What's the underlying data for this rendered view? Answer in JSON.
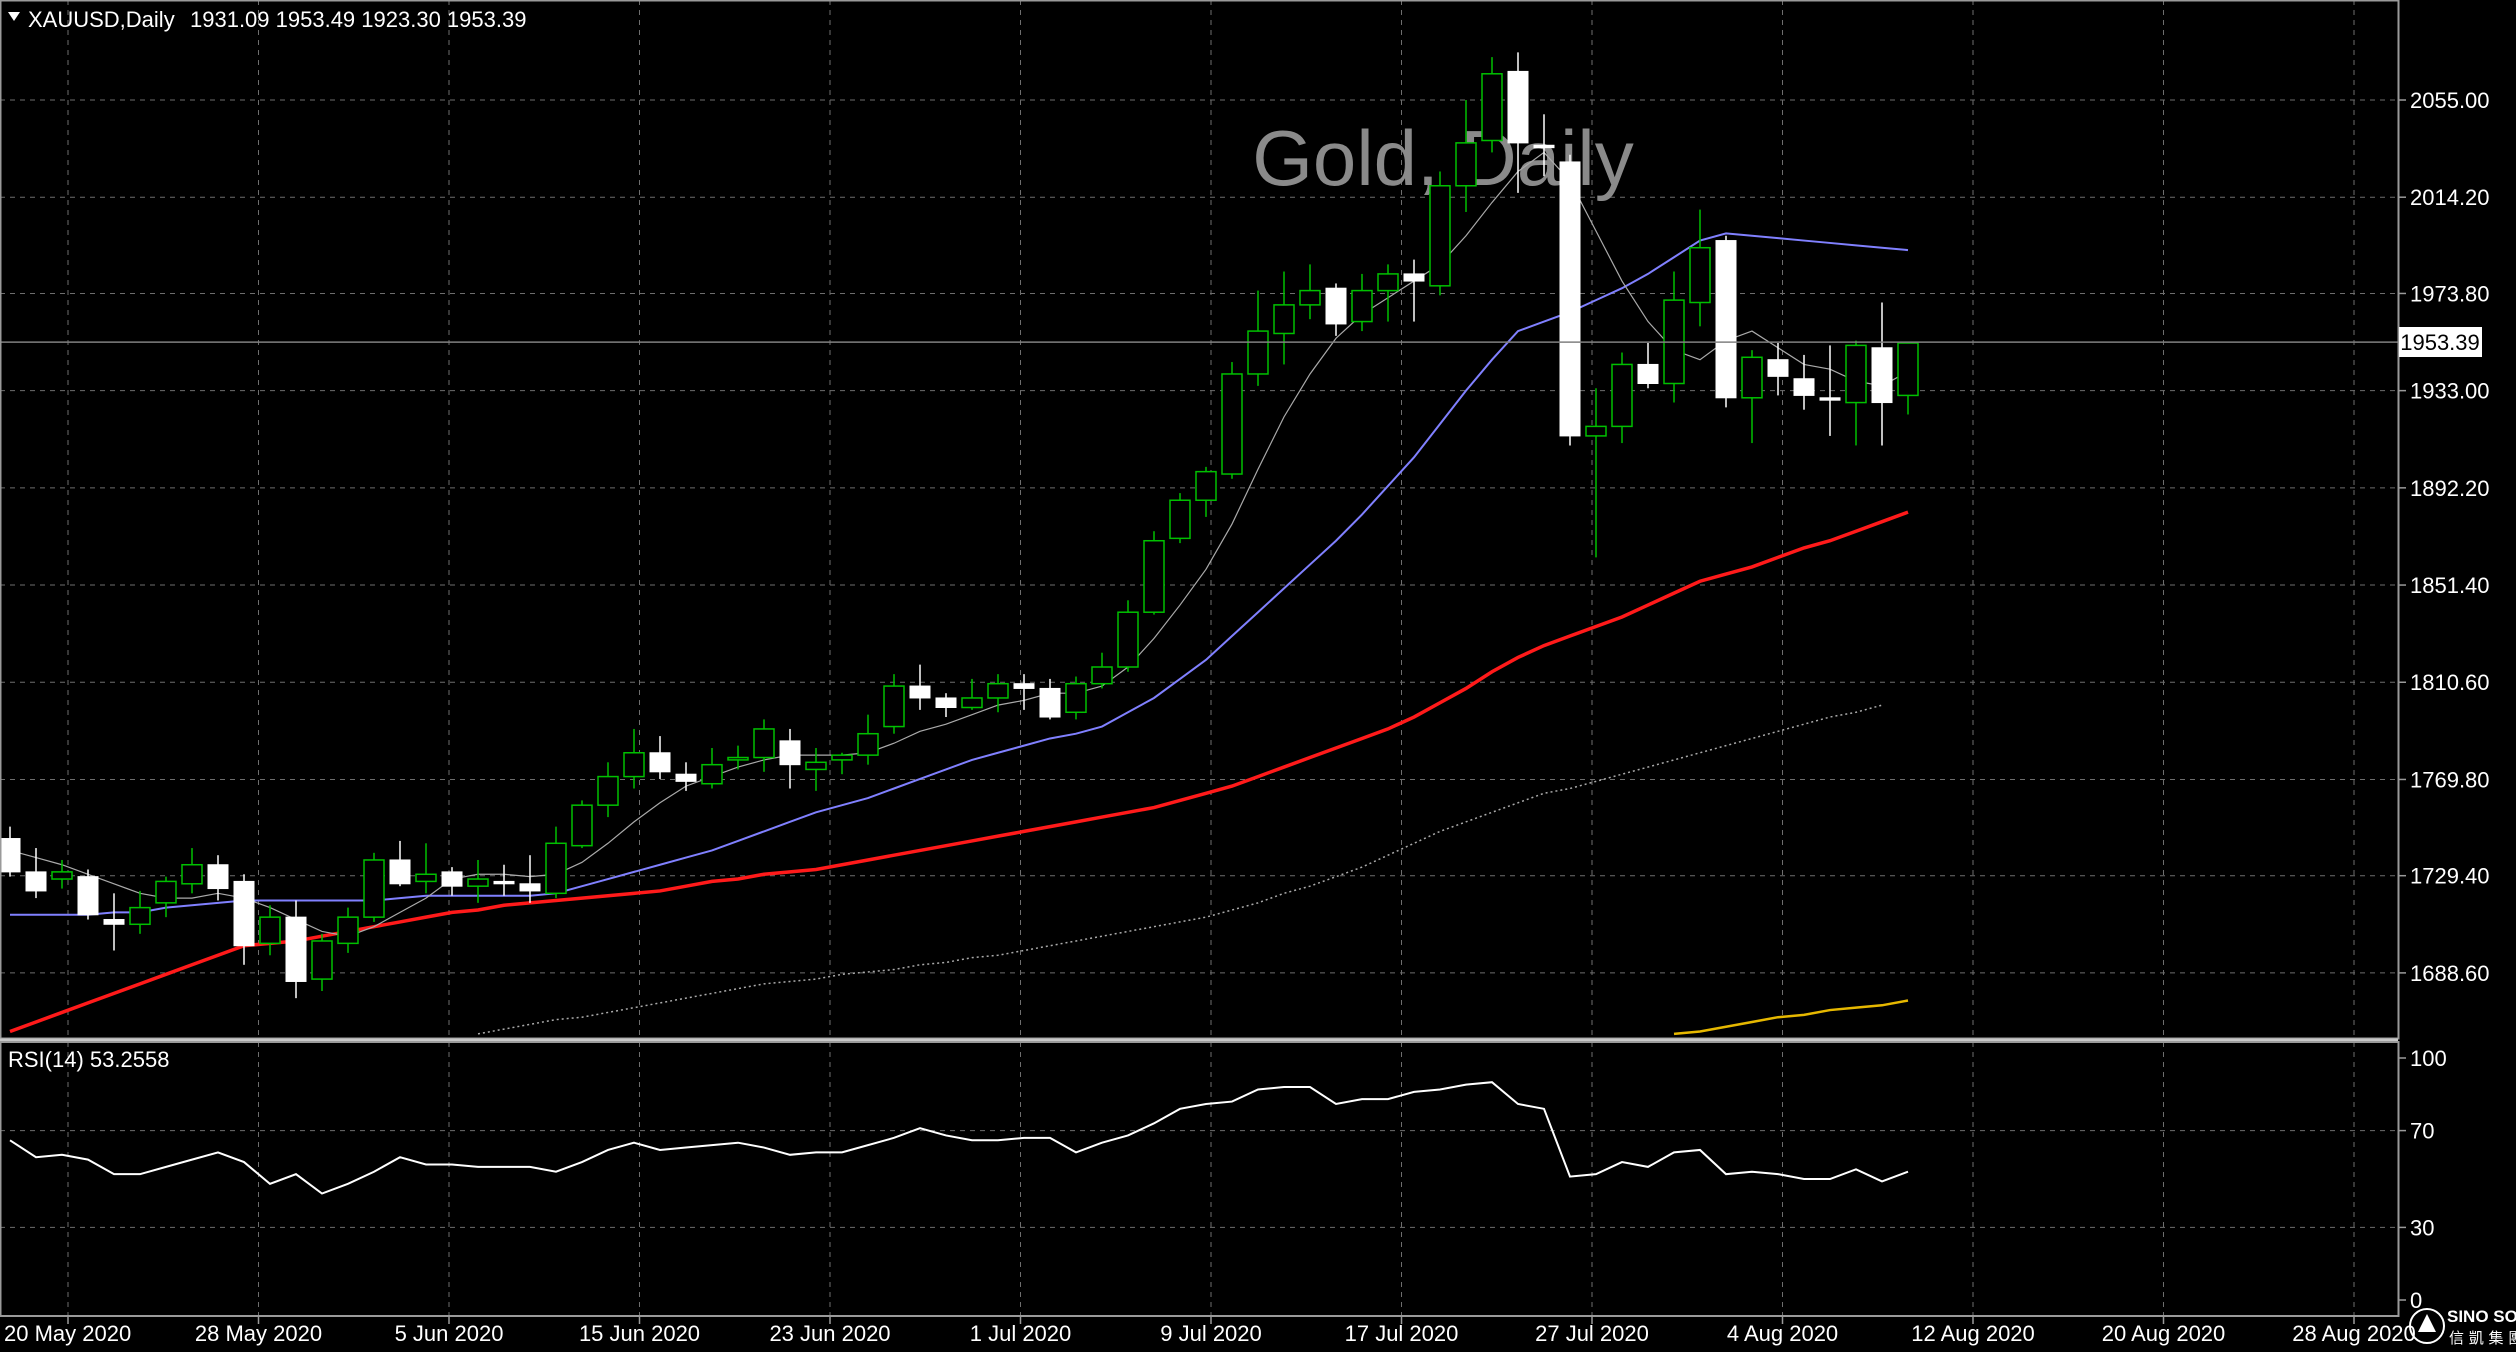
{
  "header": {
    "symbol": "XAUUSD,Daily",
    "ohlc": "1931.09 1953.49 1923.30 1953.39"
  },
  "watermark": "Gold, Daily",
  "logo": {
    "line1": "SINO SOUND",
    "line2": "信 凱 集 團"
  },
  "rsi_label": "RSI(14) 53.2558",
  "price_label": "1953.39",
  "chart_data": [
    {
      "type": "candlestick",
      "title": "Gold, Daily",
      "symbol": "XAUUSD",
      "timeframe": "Daily",
      "grid": true,
      "ylim": [
        1663,
        2080
      ],
      "y_ticks": [
        "2055.00",
        "2014.20",
        "1973.80",
        "1933.00",
        "1892.20",
        "1851.40",
        "1810.60",
        "1769.80",
        "1729.40",
        "1688.60"
      ],
      "x_ticks": [
        "20 May 2020",
        "28 May 2020",
        "5 Jun 2020",
        "15 Jun 2020",
        "23 Jun 2020",
        "1 Jul 2020",
        "9 Jul 2020",
        "17 Jul 2020",
        "27 Jul 2020",
        "4 Aug 2020",
        "12 Aug 2020",
        "20 Aug 2020",
        "28 Aug 2020"
      ],
      "last_price": 1953.39,
      "colors": {
        "up": "#00c000",
        "down": "#ffffff",
        "ma_fast": "#aaaaaa",
        "ma_blue": "#8080ff",
        "ma_red": "#ff1a1a",
        "ma_dotted": "#aaaaaa",
        "ma_yellow": "#e6b800",
        "last_line": "#808080"
      },
      "candles": [
        [
          1745,
          1750,
          1729,
          1731
        ],
        [
          1731,
          1741,
          1720,
          1723
        ],
        [
          1728,
          1736,
          1724,
          1731
        ],
        [
          1729,
          1732,
          1711,
          1713
        ],
        [
          1711,
          1722,
          1698,
          1709
        ],
        [
          1709,
          1723,
          1705,
          1716
        ],
        [
          1718,
          1729,
          1712,
          1727
        ],
        [
          1726,
          1741,
          1722,
          1734
        ],
        [
          1734,
          1738,
          1719,
          1724
        ],
        [
          1727,
          1730,
          1692,
          1700
        ],
        [
          1701,
          1717,
          1696,
          1712
        ],
        [
          1712,
          1719,
          1678,
          1685
        ],
        [
          1686,
          1705,
          1681,
          1702
        ],
        [
          1701,
          1716,
          1697,
          1712
        ],
        [
          1712,
          1739,
          1710,
          1736
        ],
        [
          1736,
          1744,
          1725,
          1726
        ],
        [
          1727,
          1743,
          1722,
          1730
        ],
        [
          1731,
          1733,
          1721,
          1725
        ],
        [
          1725,
          1736,
          1718,
          1728
        ],
        [
          1727,
          1734,
          1721,
          1726
        ],
        [
          1726,
          1738,
          1718,
          1723
        ],
        [
          1722,
          1750,
          1720,
          1743
        ],
        [
          1742,
          1761,
          1741,
          1759
        ],
        [
          1759,
          1777,
          1754,
          1771
        ],
        [
          1771,
          1791,
          1766,
          1781
        ],
        [
          1781,
          1788,
          1770,
          1773
        ],
        [
          1772,
          1777,
          1765,
          1769
        ],
        [
          1768,
          1783,
          1766,
          1776
        ],
        [
          1778,
          1784,
          1774,
          1779
        ],
        [
          1779,
          1795,
          1773,
          1791
        ],
        [
          1786,
          1791,
          1766,
          1776
        ],
        [
          1774,
          1783,
          1765,
          1777
        ],
        [
          1778,
          1781,
          1772,
          1780
        ],
        [
          1780,
          1797,
          1776,
          1789
        ],
        [
          1792,
          1814,
          1789,
          1809
        ],
        [
          1809,
          1818,
          1799,
          1804
        ],
        [
          1804,
          1806,
          1796,
          1800
        ],
        [
          1800,
          1812,
          1799,
          1804
        ],
        [
          1804,
          1814,
          1798,
          1810
        ],
        [
          1810,
          1814,
          1799,
          1808
        ],
        [
          1808,
          1812,
          1795,
          1796
        ],
        [
          1798,
          1813,
          1795,
          1810
        ],
        [
          1810,
          1823,
          1808,
          1817
        ],
        [
          1817,
          1845,
          1815,
          1840
        ],
        [
          1840,
          1874,
          1839,
          1870
        ],
        [
          1871,
          1890,
          1869,
          1887
        ],
        [
          1887,
          1901,
          1880,
          1899
        ],
        [
          1898,
          1945,
          1896,
          1940
        ],
        [
          1940,
          1975,
          1935,
          1958
        ],
        [
          1957,
          1983,
          1944,
          1969
        ],
        [
          1969,
          1986,
          1963,
          1975
        ],
        [
          1976,
          1978,
          1956,
          1961
        ],
        [
          1962,
          1982,
          1958,
          1975
        ],
        [
          1975,
          1986,
          1962,
          1982
        ],
        [
          1982,
          1988,
          1962,
          1979
        ],
        [
          1977,
          2025,
          1973,
          2019
        ],
        [
          2019,
          2055,
          2008,
          2037
        ],
        [
          2038,
          2073,
          2033,
          2066
        ],
        [
          2067,
          2075,
          2016,
          2037
        ],
        [
          2036,
          2049,
          2023,
          2035
        ],
        [
          2029,
          2032,
          1910,
          1914
        ],
        [
          1914,
          1934,
          1863,
          1918
        ],
        [
          1918,
          1949,
          1911,
          1944
        ],
        [
          1944,
          1953,
          1934,
          1936
        ],
        [
          1936,
          1983,
          1928,
          1971
        ],
        [
          1970,
          2009,
          1960,
          1993
        ],
        [
          1996,
          1998,
          1926,
          1930
        ],
        [
          1930,
          1950,
          1911,
          1947
        ],
        [
          1946,
          1953,
          1931,
          1939
        ],
        [
          1938,
          1948,
          1925,
          1931
        ],
        [
          1930,
          1952,
          1914,
          1929
        ],
        [
          1928,
          1954,
          1910,
          1952
        ],
        [
          1951,
          1970,
          1910,
          1928
        ],
        [
          1931,
          1953,
          1923,
          1953
        ]
      ],
      "ma_fast": [
        1740,
        1737,
        1734,
        1730,
        1726,
        1722,
        1720,
        1720,
        1722,
        1720,
        1716,
        1711,
        1706,
        1704,
        1708,
        1714,
        1720,
        1728,
        1730,
        1730,
        1729,
        1730,
        1735,
        1743,
        1752,
        1760,
        1767,
        1771,
        1775,
        1778,
        1780,
        1780,
        1780,
        1781,
        1785,
        1790,
        1793,
        1797,
        1801,
        1803,
        1806,
        1806,
        1809,
        1817,
        1829,
        1843,
        1858,
        1877,
        1900,
        1922,
        1940,
        1955,
        1965,
        1972,
        1979,
        1986,
        1998,
        2012,
        2025,
        2033,
        2021,
        2000,
        1979,
        1962,
        1950,
        1946,
        1954,
        1958,
        1951,
        1944,
        1942,
        1937,
        1935,
        1941
      ],
      "ma_blue": [
        1713,
        1713,
        1713,
        1713,
        1714,
        1714,
        1716,
        1717,
        1718,
        1719,
        1719,
        1719,
        1719,
        1719,
        1719,
        1720,
        1721,
        1721,
        1721,
        1721,
        1721,
        1722,
        1725,
        1728,
        1731,
        1734,
        1737,
        1740,
        1744,
        1748,
        1752,
        1756,
        1759,
        1762,
        1766,
        1770,
        1774,
        1778,
        1781,
        1784,
        1787,
        1789,
        1792,
        1798,
        1804,
        1812,
        1820,
        1830,
        1840,
        1850,
        1860,
        1870,
        1881,
        1893,
        1905,
        1919,
        1933,
        1946,
        1958,
        1962,
        1966,
        1971,
        1976,
        1982,
        1989,
        1996,
        1999,
        1998,
        1997,
        1996,
        1995,
        1994,
        1993,
        1992
      ],
      "ma_red": [
        1664,
        1668,
        1672,
        1676,
        1680,
        1684,
        1688,
        1692,
        1696,
        1700,
        1701,
        1702,
        1704,
        1706,
        1708,
        1710,
        1712,
        1714,
        1715,
        1717,
        1718,
        1719,
        1720,
        1721,
        1722,
        1723,
        1725,
        1727,
        1728,
        1730,
        1731,
        1732,
        1734,
        1736,
        1738,
        1740,
        1742,
        1744,
        1746,
        1748,
        1750,
        1752,
        1754,
        1756,
        1758,
        1761,
        1764,
        1767,
        1771,
        1775,
        1779,
        1783,
        1787,
        1791,
        1796,
        1802,
        1808,
        1815,
        1821,
        1826,
        1830,
        1834,
        1838,
        1843,
        1848,
        1853,
        1856,
        1859,
        1863,
        1867,
        1870,
        1874,
        1878,
        1882
      ],
      "ma_dotted_start": [
        0,
        1663
      ],
      "ma_dotted": [
        1663,
        1665,
        1667,
        1669,
        1670,
        1672,
        1674,
        1676,
        1678,
        1680,
        1682,
        1684,
        1685,
        1686,
        1688,
        1689,
        1690,
        1692,
        1693,
        1695,
        1696,
        1698,
        1700,
        1702,
        1704,
        1706,
        1708,
        1710,
        1712,
        1715,
        1718,
        1722,
        1725,
        1729,
        1733,
        1738,
        1743,
        1748,
        1752,
        1756,
        1760,
        1764,
        1766,
        1769,
        1772,
        1775,
        1778,
        1781,
        1784,
        1787,
        1790,
        1793,
        1796,
        1798,
        1801
      ],
      "ma_yellow": [
        1663,
        1664,
        1666,
        1668,
        1670,
        1671,
        1673,
        1674,
        1675,
        1677
      ]
    },
    {
      "type": "line",
      "title": "RSI(14) 53.2558",
      "ylim": [
        0,
        100
      ],
      "y_ticks": [
        "100",
        "70",
        "30",
        "0"
      ],
      "levels": [
        70,
        30
      ],
      "series": [
        {
          "name": "RSI(14)",
          "values": [
            66,
            59,
            60,
            58,
            52,
            52,
            55,
            58,
            61,
            57,
            48,
            52,
            44,
            48,
            53,
            59,
            56,
            56,
            55,
            55,
            55,
            53,
            57,
            62,
            65,
            62,
            63,
            64,
            65,
            63,
            60,
            61,
            61,
            64,
            67,
            71,
            68,
            66,
            66,
            67,
            67,
            61,
            65,
            68,
            73,
            79,
            81,
            82,
            87,
            88,
            88,
            81,
            83,
            83,
            86,
            87,
            89,
            90,
            81,
            79,
            51,
            52,
            57,
            55,
            61,
            62,
            52,
            53,
            52,
            50,
            50,
            54,
            49,
            53
          ]
        }
      ]
    }
  ]
}
